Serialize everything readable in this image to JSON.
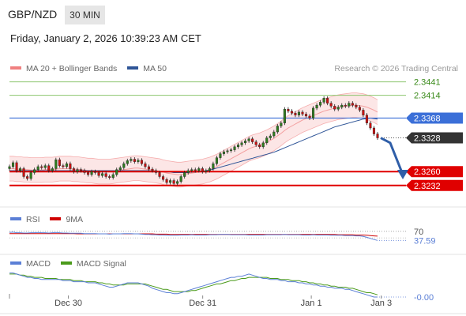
{
  "header": {
    "pair": "GBP/NZD",
    "timeframe": "30 MIN",
    "datetime": "Friday, January 2, 2026 10:39:23 AM CET"
  },
  "legend": {
    "bollinger_label": "MA 20 + Bollinger Bands",
    "ma50_label": "MA 50",
    "credit": "Research © 2026 Trading Central",
    "rsi_label": "RSI",
    "rsi_ma_label": "9MA",
    "macd_label": "MACD",
    "macd_signal_label": "MACD Signal"
  },
  "colors": {
    "bollinger": "#f08080",
    "ma50": "#2f5597",
    "resistance": "#8cc56e",
    "pivot": "#3b6fd8",
    "support": "#e00000",
    "last": "#333333",
    "macd": "#5b7fd6",
    "macd_signal": "#4a9a1a",
    "rsi": "#5b7fd6",
    "rsi_ma": "#d00000",
    "bull_candle": "#2e7d1f",
    "bear_candle": "#cc1010"
  },
  "chart_data": [
    {
      "type": "candlestick",
      "ylim": [
        2.3195,
        2.345
      ],
      "levels": [
        {
          "name": "resistance-2",
          "value": 2.3441,
          "label": "2.3441",
          "kind": "resistance"
        },
        {
          "name": "resistance-1",
          "value": 2.3414,
          "label": "2.3414",
          "kind": "resistance"
        },
        {
          "name": "pivot",
          "value": 2.3368,
          "label": "2.3368",
          "kind": "pivot"
        },
        {
          "name": "last-price",
          "value": 2.3328,
          "label": "2.3328",
          "kind": "last"
        },
        {
          "name": "support-1",
          "value": 2.326,
          "label": "2.3260",
          "kind": "support"
        },
        {
          "name": "support-2",
          "value": 2.3232,
          "label": "2.3232",
          "kind": "support"
        }
      ],
      "x_ticks": [
        "Dec 30",
        "Dec 31",
        "Jan 1",
        "Jan 3"
      ],
      "close": [
        2.327,
        2.3278,
        2.3262,
        2.3266,
        2.325,
        2.3246,
        2.3258,
        2.3264,
        2.327,
        2.3268,
        2.3272,
        2.3262,
        2.3266,
        2.3284,
        2.3272,
        2.327,
        2.3276,
        2.3266,
        2.326,
        2.3264,
        2.3262,
        2.3258,
        2.3254,
        2.326,
        2.3258,
        2.3252,
        2.3256,
        2.325,
        2.3248,
        2.3254,
        2.3264,
        2.3268,
        2.3276,
        2.3282,
        2.3285,
        2.328,
        2.3283,
        2.3276,
        2.327,
        2.3265,
        2.3262,
        2.3258,
        2.325,
        2.3244,
        2.3238,
        2.3242,
        2.3236,
        2.324,
        2.325,
        2.3258,
        2.3262,
        2.3264,
        2.3262,
        2.3266,
        2.326,
        2.3262,
        2.3266,
        2.3276,
        2.3288,
        2.3296,
        2.33,
        2.3302,
        2.3304,
        2.331,
        2.3314,
        2.3318,
        2.3322,
        2.3326,
        2.332,
        2.3314,
        2.331,
        2.3318,
        2.3328,
        2.3332,
        2.334,
        2.3352,
        2.3358,
        2.3386,
        2.3382,
        2.3378,
        2.3374,
        2.338,
        2.3376,
        2.3372,
        2.3368,
        2.3388,
        2.3394,
        2.34,
        2.3408,
        2.3398,
        2.3392,
        2.3386,
        2.339,
        2.3394,
        2.3392,
        2.3398,
        2.3394,
        2.339,
        2.3384,
        2.3374,
        2.3358,
        2.3348,
        2.3336,
        2.3328
      ],
      "ma20": [
        2.3266,
        2.3266,
        2.3265,
        2.3265,
        2.3264,
        2.3264,
        2.3263,
        2.3263,
        2.3263,
        2.3263,
        2.3264,
        2.3264,
        2.3264,
        2.3265,
        2.3266,
        2.3266,
        2.3266,
        2.3266,
        2.3265,
        2.3265,
        2.3264,
        2.3263,
        2.3262,
        2.3262,
        2.3261,
        2.326,
        2.326,
        2.326,
        2.326,
        2.3261,
        2.3262,
        2.3263,
        2.3264,
        2.3265,
        2.3266,
        2.3267,
        2.3267,
        2.3266,
        2.3265,
        2.3264,
        2.3263,
        2.3262,
        2.3261,
        2.3259,
        2.3257,
        2.3256,
        2.3255,
        2.3254,
        2.3254,
        2.3255,
        2.3256,
        2.3257,
        2.3258,
        2.3259,
        2.326,
        2.3262,
        2.3264,
        2.3267,
        2.327,
        2.3274,
        2.3278,
        2.3282,
        2.3286,
        2.329,
        2.3294,
        2.3298,
        2.3302,
        2.3306,
        2.3309,
        2.3311,
        2.3313,
        2.3316,
        2.3319,
        2.3323,
        2.3327,
        2.3332,
        2.3337,
        2.3343,
        2.3348,
        2.3352,
        2.3356,
        2.336,
        2.3364,
        2.3367,
        2.337,
        2.3373,
        2.3376,
        2.3379,
        2.3382,
        2.3384,
        2.3386,
        2.3388,
        2.339,
        2.3391,
        2.3392,
        2.3393,
        2.3394,
        2.3394,
        2.3393,
        2.3392,
        2.339,
        2.3387,
        2.3384,
        2.338
      ],
      "ma50": [
        2.3262,
        2.3262,
        2.3262,
        2.3262,
        2.3262,
        2.3262,
        2.3262,
        2.3262,
        2.3262,
        2.3262,
        2.3262,
        2.3262,
        2.3262,
        2.3262,
        2.3262,
        2.3262,
        2.3262,
        2.3262,
        2.3262,
        2.3262,
        2.3262,
        2.3262,
        2.3262,
        2.3262,
        2.3262,
        2.3262,
        2.3262,
        2.3262,
        2.3262,
        2.3262,
        2.3262,
        2.3262,
        2.3262,
        2.3262,
        2.3262,
        2.3262,
        2.3262,
        2.3262,
        2.3262,
        2.3262,
        2.3261,
        2.3261,
        2.326,
        2.326,
        2.3259,
        2.3259,
        2.3258,
        2.3258,
        2.3258,
        2.3258,
        2.3258,
        2.3259,
        2.3259,
        2.326,
        2.3261,
        2.3262,
        2.3263,
        2.3265,
        2.3267,
        2.3269,
        2.3271,
        2.3273,
        2.3275,
        2.3277,
        2.3279,
        2.3281,
        2.3283,
        2.3285,
        2.3287,
        2.3289,
        2.3291,
        2.3293,
        2.3295,
        2.3297,
        2.3299,
        2.3302,
        2.3305,
        2.3308,
        2.3311,
        2.3314,
        2.3317,
        2.332,
        2.3323,
        2.3326,
        2.3329,
        2.3332,
        2.3335,
        2.3338,
        2.3341,
        2.3344,
        2.3347,
        2.335,
        2.3352,
        2.3354,
        2.3356,
        2.3358,
        2.336,
        2.3362,
        2.3364,
        2.3366,
        2.3367,
        2.3368,
        2.3367,
        2.3366
      ],
      "bb_width": 0.0025,
      "forecast": [
        [
          2.3328,
          2.3318
        ],
        [
          2.3318,
          2.3254
        ]
      ]
    },
    {
      "type": "line",
      "name": "RSI",
      "ylim": [
        0,
        100
      ],
      "tick_labels": [
        "70",
        "37.59"
      ],
      "rsi": [
        66,
        67,
        65,
        65,
        64,
        64,
        65,
        65,
        66,
        65,
        65,
        64,
        65,
        66,
        65,
        64,
        64,
        63,
        63,
        63,
        63,
        62,
        62,
        62,
        62,
        61,
        61,
        61,
        60,
        61,
        61,
        61,
        62,
        62,
        62,
        61,
        61,
        60,
        59,
        59,
        58,
        58,
        57,
        57,
        56,
        56,
        56,
        56,
        57,
        57,
        57,
        58,
        57,
        57,
        57,
        57,
        58,
        58,
        58,
        59,
        59,
        59,
        58,
        58,
        58,
        58,
        58,
        57,
        57,
        57,
        57,
        57,
        58,
        58,
        58,
        58,
        58,
        59,
        58,
        58,
        58,
        58,
        57,
        57,
        57,
        58,
        57,
        57,
        57,
        57,
        56,
        56,
        56,
        56,
        55,
        55,
        55,
        54,
        54,
        52,
        49,
        45,
        41,
        38
      ],
      "rsi_ma": [
        62,
        62,
        62,
        62,
        62,
        62,
        62,
        62,
        62,
        62,
        62,
        62,
        62,
        62,
        62,
        62,
        62,
        62,
        62,
        61,
        61,
        61,
        61,
        61,
        61,
        61,
        61,
        61,
        61,
        61,
        61,
        61,
        61,
        61,
        61,
        61,
        61,
        61,
        61,
        61,
        61,
        60,
        60,
        60,
        60,
        59,
        59,
        59,
        59,
        59,
        59,
        59,
        59,
        59,
        59,
        59,
        59,
        59,
        59,
        59,
        59,
        59,
        59,
        59,
        59,
        59,
        59,
        59,
        59,
        59,
        59,
        59,
        59,
        59,
        59,
        59,
        59,
        59,
        59,
        59,
        59,
        59,
        59,
        59,
        59,
        59,
        59,
        59,
        59,
        59,
        59,
        59,
        58,
        58,
        58,
        58,
        58,
        57,
        57,
        57,
        56,
        55,
        54,
        53
      ]
    },
    {
      "type": "line",
      "name": "MACD",
      "ylim": [
        -0.001,
        0.0016
      ],
      "tick_labels": [
        "-0.00"
      ],
      "macd": [
        0.0012,
        0.0012,
        0.0011,
        0.001,
        0.0009,
        0.0008,
        0.0008,
        0.0007,
        0.0007,
        0.0006,
        0.0006,
        0.0006,
        0.0006,
        0.0006,
        0.0006,
        0.0005,
        0.0005,
        0.0005,
        0.0004,
        0.0004,
        0.0004,
        0.0004,
        0.0003,
        0.0003,
        0.0003,
        0.0002,
        0.0001,
        0.0,
        -0.0001,
        -0.0001,
        0.0,
        0.0001,
        0.0002,
        0.0003,
        0.0003,
        0.0003,
        0.0003,
        0.0002,
        0.0001,
        0.0,
        -0.0002,
        -0.0003,
        -0.0004,
        -0.0005,
        -0.0006,
        -0.0006,
        -0.0007,
        -0.0007,
        -0.0006,
        -0.0005,
        -0.0004,
        -0.0003,
        -0.0002,
        -0.0001,
        0.0,
        0.0001,
        0.0002,
        0.0003,
        0.0004,
        0.0005,
        0.0006,
        0.0007,
        0.0008,
        0.0008,
        0.0009,
        0.0009,
        0.001,
        0.0011,
        0.001,
        0.0009,
        0.0008,
        0.0007,
        0.0007,
        0.0006,
        0.0006,
        0.0006,
        0.0005,
        0.0005,
        0.0004,
        0.0004,
        0.0004,
        0.0003,
        0.0003,
        0.0002,
        0.0002,
        0.0001,
        0.0001,
        0.0,
        0.0,
        -0.0001,
        -0.0001,
        -0.0002,
        -0.0002,
        -0.0002,
        -0.0003,
        -0.0003,
        -0.0004,
        -0.0005,
        -0.0006,
        -0.0007,
        -0.0008,
        -0.0009,
        -0.001,
        -0.001
      ],
      "signal": [
        0.0011,
        0.0011,
        0.0011,
        0.001,
        0.001,
        0.0009,
        0.0009,
        0.0008,
        0.0008,
        0.0008,
        0.0007,
        0.0007,
        0.0007,
        0.0007,
        0.0006,
        0.0006,
        0.0006,
        0.0006,
        0.0005,
        0.0005,
        0.0005,
        0.0004,
        0.0004,
        0.0004,
        0.0004,
        0.0003,
        0.0003,
        0.0002,
        0.0002,
        0.0001,
        0.0001,
        0.0001,
        0.0001,
        0.0002,
        0.0002,
        0.0002,
        0.0002,
        0.0002,
        0.0002,
        0.0001,
        0.0,
        -0.0001,
        -0.0002,
        -0.0003,
        -0.0003,
        -0.0004,
        -0.0005,
        -0.0005,
        -0.0005,
        -0.0005,
        -0.0005,
        -0.0004,
        -0.0004,
        -0.0003,
        -0.0002,
        -0.0001,
        0.0,
        0.0001,
        0.0002,
        0.0002,
        0.0003,
        0.0004,
        0.0005,
        0.0005,
        0.0006,
        0.0007,
        0.0007,
        0.0008,
        0.0008,
        0.0008,
        0.0008,
        0.0008,
        0.0008,
        0.0007,
        0.0007,
        0.0007,
        0.0006,
        0.0006,
        0.0006,
        0.0005,
        0.0005,
        0.0005,
        0.0004,
        0.0004,
        0.0003,
        0.0003,
        0.0002,
        0.0002,
        0.0001,
        0.0001,
        0.0,
        0.0,
        -0.0001,
        -0.0001,
        -0.0001,
        -0.0002,
        -0.0002,
        -0.0003,
        -0.0004,
        -0.0005,
        -0.0006,
        -0.0006,
        -0.0007,
        -0.0008
      ]
    }
  ]
}
